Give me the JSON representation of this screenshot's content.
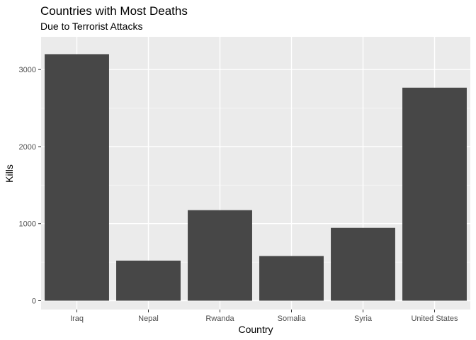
{
  "chart_data": {
    "type": "bar",
    "title": "Countries with Most Deaths",
    "subtitle": "Due to Terrorist Attacks",
    "xlabel": "Country",
    "ylabel": "Kills",
    "categories": [
      "Iraq",
      "Nepal",
      "Rwanda",
      "Somalia",
      "Syria",
      "United States"
    ],
    "values": [
      3200,
      520,
      1175,
      580,
      945,
      2765
    ],
    "ylim": [
      -115,
      3425
    ],
    "yticks": [
      0,
      1000,
      2000,
      3000
    ],
    "ytick_labels": [
      "0",
      "1000",
      "2000",
      "3000"
    ],
    "grid": true,
    "colors": {
      "bar": "#474747",
      "panel": "#ebebeb",
      "grid_major": "#ffffff",
      "grid_minor": "#f5f5f5"
    }
  }
}
